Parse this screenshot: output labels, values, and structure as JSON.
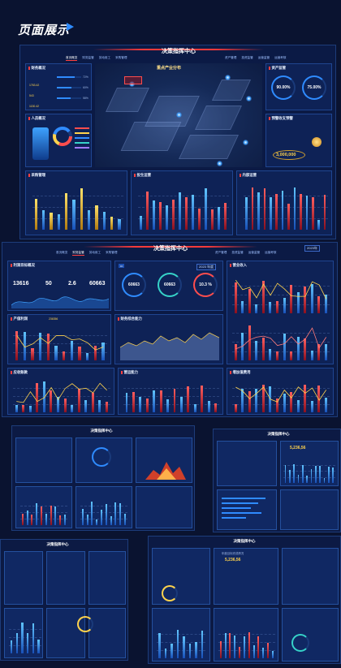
{
  "page": {
    "title": "页面展示"
  },
  "screen1": {
    "title": "决策指挥中心",
    "tabs_left": [
      "首页概览",
      "财务监管",
      "劳动用工",
      "采购管理"
    ],
    "tabs_right": [
      "资产管理",
      "投资监管",
      "运营监管",
      "运营考核"
    ],
    "map_title": "重点产业分布",
    "panels": {
      "finance": {
        "title": "财务概况",
        "rows": [
          {
            "value": "1763.42",
            "pct": "72%"
          },
          {
            "value": "543",
            "pct": "60%"
          },
          {
            "value": "1130.42",
            "pct": "58%"
          }
        ]
      },
      "staff": {
        "title": "人员概况"
      },
      "asset": {
        "title": "资产监管",
        "ring1": "90.00%",
        "ring2": "75.00%"
      },
      "alert": {
        "title": "预警收支预警",
        "amount": "3,000,000"
      },
      "purchase": {
        "title": "采购管理"
      },
      "invest": {
        "title": "投生运营"
      },
      "ops": {
        "title": "内部运营"
      }
    }
  },
  "screen2": {
    "title": "决策指挥中心",
    "year": "2023年",
    "tabs_left": [
      "首页概览",
      "财务监管",
      "劳动用工",
      "采购管理"
    ],
    "tabs_right": [
      "资产管理",
      "投资监管",
      "运营监管",
      "运营考核"
    ],
    "panels": {
      "income": {
        "title": "利润目标概况",
        "stats": [
          "13616",
          "50",
          "2.6",
          "60663"
        ]
      },
      "rings": {
        "values": [
          "60663",
          "60663",
          "10.3 %"
        ],
        "chip": "2023 年度"
      },
      "asset": {
        "title": "营业收入"
      },
      "profit": {
        "title": "产值利润",
        "value": "236356"
      },
      "debt": {
        "title": "财务综合能力"
      },
      "deposit": {
        "title": "应收账款"
      },
      "turnover": {
        "title": "营运能力"
      },
      "trend": {
        "title": "增加值费用"
      }
    }
  },
  "screen3": {
    "title": "决策指挥中心"
  },
  "screen4": {
    "title": "决策指挥中心",
    "value": "5,236,56"
  },
  "screen5": {
    "title": "决策指挥中心"
  },
  "screen6": {
    "title": "决策指挥中心",
    "value": "5,236,56",
    "legend": "年度目标完成情况"
  }
}
